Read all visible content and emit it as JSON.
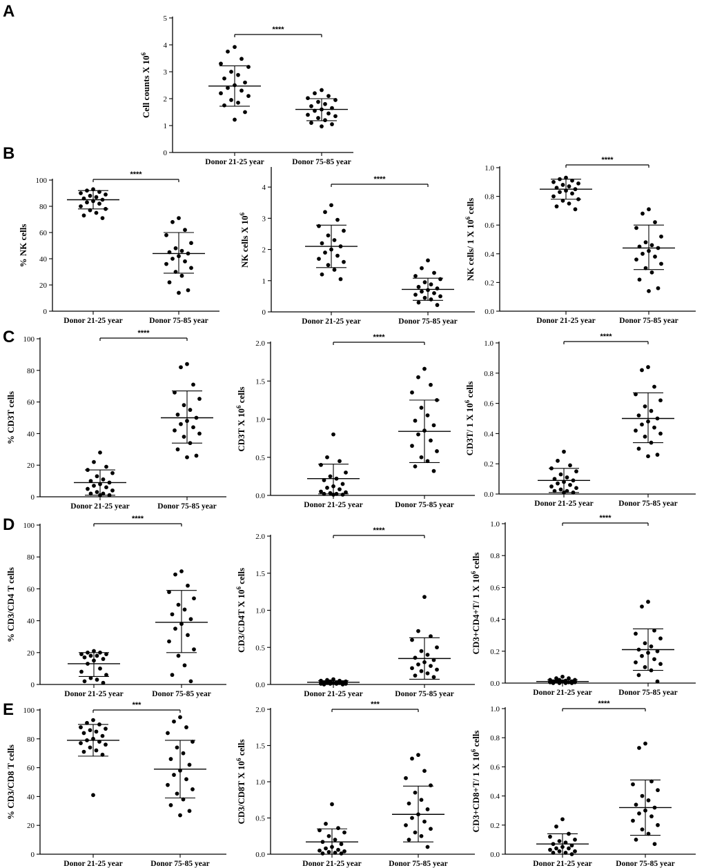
{
  "figure": {
    "panel_labels": [
      "A",
      "B",
      "C",
      "D",
      "E"
    ]
  },
  "chart_data": [
    {
      "id": "A1",
      "type": "scatter",
      "ylabel": "Cell counts X 10",
      "ylabel_sup": "6",
      "ylabel_tail": "",
      "ylim": [
        0,
        5
      ],
      "yticks": [
        0,
        1,
        2,
        3,
        4,
        5
      ],
      "yticklabels": [
        "0",
        "1",
        "2",
        "3",
        "4",
        "5"
      ],
      "categories": [
        "Donor 21-25 year",
        "Donor 75-85 year"
      ],
      "significance": "****",
      "series": [
        {
          "name": "Donor 21-25 year",
          "mean": 2.47,
          "sd_low": 1.72,
          "sd_high": 3.22,
          "values": [
            3.92,
            3.75,
            3.48,
            3.3,
            3.18,
            3.0,
            2.88,
            2.75,
            2.6,
            2.5,
            2.4,
            2.3,
            2.2,
            2.1,
            1.95,
            1.85,
            1.75,
            1.5,
            1.22
          ]
        },
        {
          "name": "Donor 75-85 year",
          "mean": 1.6,
          "sd_low": 1.18,
          "sd_high": 2.0,
          "values": [
            2.32,
            2.2,
            2.1,
            2.02,
            1.95,
            1.88,
            1.8,
            1.72,
            1.65,
            1.6,
            1.55,
            1.45,
            1.4,
            1.35,
            1.28,
            1.2,
            1.1,
            1.05,
            0.97
          ]
        }
      ]
    },
    {
      "id": "B1",
      "type": "scatter",
      "ylabel": "% NK cells",
      "ylabel_sup": "",
      "ylabel_tail": "",
      "ylim": [
        0,
        100
      ],
      "yticks": [
        0,
        20,
        40,
        60,
        80,
        100
      ],
      "yticklabels": [
        "0",
        "20",
        "40",
        "60",
        "80",
        "100"
      ],
      "categories": [
        "Donor 21-25 year",
        "Donor 75-85 year"
      ],
      "significance": "****",
      "series": [
        {
          "name": "Donor 21-25 year",
          "mean": 85,
          "sd_low": 78,
          "sd_high": 92,
          "values": [
            93,
            92,
            91,
            90,
            89,
            88,
            87,
            86,
            85,
            84,
            83,
            82,
            80,
            78,
            77,
            75,
            73,
            71
          ]
        },
        {
          "name": "Donor 75-85 year",
          "mean": 44,
          "sd_low": 29,
          "sd_high": 60,
          "values": [
            71,
            68,
            62,
            58,
            52,
            48,
            46,
            45,
            44,
            42,
            40,
            38,
            36,
            33,
            30,
            27,
            22,
            16,
            14
          ]
        }
      ]
    },
    {
      "id": "B2",
      "type": "scatter",
      "ylabel": "NK cells X 10",
      "ylabel_sup": "6",
      "ylabel_tail": "",
      "ylim": [
        0,
        4.6
      ],
      "yticks": [
        0,
        1,
        2,
        3,
        4
      ],
      "yticklabels": [
        "0",
        "1",
        "2",
        "3",
        "4"
      ],
      "categories": [
        "Donor 21-25 year",
        "Donor 75-85 year"
      ],
      "significance": "****",
      "series": [
        {
          "name": "Donor 21-25 year",
          "mean": 2.1,
          "sd_low": 1.42,
          "sd_high": 2.78,
          "values": [
            3.42,
            3.2,
            2.95,
            2.75,
            2.6,
            2.45,
            2.3,
            2.2,
            2.1,
            2.0,
            1.9,
            1.8,
            1.7,
            1.6,
            1.5,
            1.35,
            1.2,
            1.05
          ]
        },
        {
          "name": "Donor 75-85 year",
          "mean": 0.72,
          "sd_low": 0.37,
          "sd_high": 1.08,
          "values": [
            1.65,
            1.4,
            1.25,
            1.15,
            1.05,
            0.95,
            0.88,
            0.8,
            0.75,
            0.7,
            0.65,
            0.6,
            0.55,
            0.5,
            0.45,
            0.4,
            0.3,
            0.22
          ]
        }
      ]
    },
    {
      "id": "B3",
      "type": "scatter",
      "ylabel": "NK cells/ 1 X 10",
      "ylabel_sup": "6",
      "ylabel_tail": " cells",
      "ylim": [
        0,
        1.0
      ],
      "yticks": [
        0,
        0.2,
        0.4,
        0.6,
        0.8,
        1.0
      ],
      "yticklabels": [
        "0.0",
        "0.2",
        "0.4",
        "0.6",
        "0.8",
        "1.0"
      ],
      "categories": [
        "Donor 21-25 year",
        "Donor 75-85 year"
      ],
      "significance": "****",
      "series": [
        {
          "name": "Donor 21-25 year",
          "mean": 0.85,
          "sd_low": 0.78,
          "sd_high": 0.92,
          "values": [
            0.93,
            0.92,
            0.91,
            0.9,
            0.89,
            0.88,
            0.87,
            0.86,
            0.85,
            0.84,
            0.83,
            0.82,
            0.8,
            0.78,
            0.77,
            0.75,
            0.73,
            0.71
          ]
        },
        {
          "name": "Donor 75-85 year",
          "mean": 0.44,
          "sd_low": 0.29,
          "sd_high": 0.6,
          "values": [
            0.71,
            0.68,
            0.62,
            0.58,
            0.52,
            0.48,
            0.46,
            0.45,
            0.44,
            0.42,
            0.4,
            0.38,
            0.36,
            0.33,
            0.3,
            0.27,
            0.22,
            0.16,
            0.14
          ]
        }
      ]
    },
    {
      "id": "C1",
      "type": "scatter",
      "ylabel": "% CD3T cells",
      "ylabel_sup": "",
      "ylabel_tail": "",
      "ylim": [
        0,
        100
      ],
      "yticks": [
        0,
        20,
        40,
        60,
        80,
        100
      ],
      "yticklabels": [
        "0",
        "20",
        "40",
        "60",
        "80",
        "100"
      ],
      "categories": [
        "Donor 21-25 year",
        "Donor 75-85 year"
      ],
      "significance": "****",
      "series": [
        {
          "name": "Donor 21-25 year",
          "mean": 9,
          "sd_low": 1,
          "sd_high": 17,
          "values": [
            28,
            22,
            19,
            17,
            15,
            13,
            11,
            10,
            9,
            8,
            7,
            6,
            5,
            4,
            3,
            2,
            2,
            1,
            1
          ]
        },
        {
          "name": "Donor 75-85 year",
          "mean": 50,
          "sd_low": 34,
          "sd_high": 67,
          "values": [
            84,
            82,
            71,
            66,
            62,
            58,
            55,
            52,
            50,
            48,
            46,
            44,
            42,
            40,
            38,
            34,
            30,
            26,
            25
          ]
        }
      ]
    },
    {
      "id": "C2",
      "type": "scatter",
      "ylabel": "CD3T X 10",
      "ylabel_sup": "6",
      "ylabel_tail": " cells",
      "ylim": [
        0,
        2.0
      ],
      "yticks": [
        0,
        0.5,
        1.0,
        1.5,
        2.0
      ],
      "yticklabels": [
        "0.0",
        "0.5",
        "1.0",
        "1.5",
        "2.0"
      ],
      "categories": [
        "Donor 21-25 year",
        "Donor 75-85 year"
      ],
      "significance": "****",
      "series": [
        {
          "name": "Donor 21-25 year",
          "mean": 0.22,
          "sd_low": 0.02,
          "sd_high": 0.41,
          "values": [
            0.8,
            0.5,
            0.45,
            0.4,
            0.3,
            0.25,
            0.22,
            0.2,
            0.15,
            0.12,
            0.1,
            0.08,
            0.05,
            0.04,
            0.03,
            0.02,
            0.02,
            0.01,
            0.01
          ]
        },
        {
          "name": "Donor 75-85 year",
          "mean": 0.84,
          "sd_low": 0.43,
          "sd_high": 1.25,
          "values": [
            1.66,
            1.55,
            1.45,
            1.35,
            1.25,
            1.15,
            1.05,
            0.98,
            0.92,
            0.85,
            0.8,
            0.72,
            0.65,
            0.58,
            0.5,
            0.45,
            0.38,
            0.32
          ]
        }
      ]
    },
    {
      "id": "C3",
      "type": "scatter",
      "ylabel": "CD3T/ 1 X 10",
      "ylabel_sup": "6",
      "ylabel_tail": " cells",
      "ylim": [
        0,
        1.0
      ],
      "yticks": [
        0,
        0.2,
        0.4,
        0.6,
        0.8,
        1.0
      ],
      "yticklabels": [
        "0.0",
        "0.2",
        "0.4",
        "0.6",
        "0.8",
        "1.0"
      ],
      "categories": [
        "Donor 21-25 year",
        "Donor 75-85 year"
      ],
      "significance": "****",
      "series": [
        {
          "name": "Donor 21-25 year",
          "mean": 0.09,
          "sd_low": 0.01,
          "sd_high": 0.17,
          "values": [
            0.28,
            0.22,
            0.19,
            0.17,
            0.15,
            0.13,
            0.11,
            0.1,
            0.09,
            0.08,
            0.07,
            0.06,
            0.05,
            0.04,
            0.03,
            0.02,
            0.02,
            0.01,
            0.01
          ]
        },
        {
          "name": "Donor 75-85 year",
          "mean": 0.5,
          "sd_low": 0.34,
          "sd_high": 0.67,
          "values": [
            0.84,
            0.82,
            0.71,
            0.66,
            0.62,
            0.58,
            0.55,
            0.52,
            0.5,
            0.48,
            0.46,
            0.44,
            0.42,
            0.4,
            0.38,
            0.34,
            0.3,
            0.26,
            0.25
          ]
        }
      ]
    },
    {
      "id": "D1",
      "type": "scatter",
      "ylabel": "% CD3/CD4 T cells",
      "ylabel_sup": "",
      "ylabel_tail": "",
      "ylim": [
        0,
        100
      ],
      "yticks": [
        0,
        20,
        40,
        60,
        80,
        100
      ],
      "yticklabels": [
        "0",
        "20",
        "40",
        "60",
        "80",
        "100"
      ],
      "categories": [
        "Donor 21-25 year",
        "Donor 75-85 year"
      ],
      "significance": "****",
      "series": [
        {
          "name": "Donor 21-25 year",
          "mean": 13,
          "sd_low": 5,
          "sd_high": 20,
          "values": [
            21,
            20,
            20,
            19,
            19,
            18,
            18,
            17,
            16,
            15,
            13,
            10,
            8,
            6,
            4,
            3,
            2,
            1
          ]
        },
        {
          "name": "Donor 75-85 year",
          "mean": 39,
          "sd_low": 20,
          "sd_high": 59,
          "values": [
            71,
            69,
            62,
            58,
            54,
            50,
            47,
            44,
            41,
            38,
            35,
            31,
            27,
            22,
            18,
            12,
            6,
            2
          ]
        }
      ]
    },
    {
      "id": "D2",
      "type": "scatter",
      "ylabel": "CD3/CD4T X 10",
      "ylabel_sup": "6",
      "ylabel_tail": " cells",
      "ylim": [
        0,
        2.0
      ],
      "yticks": [
        0,
        0.5,
        1.0,
        1.5,
        2.0
      ],
      "yticklabels": [
        "0.0",
        "0.5",
        "1.0",
        "1.5",
        "2.0"
      ],
      "categories": [
        "Donor 21-25 year",
        "Donor 75-85 year"
      ],
      "significance": "****",
      "series": [
        {
          "name": "Donor 21-25 year",
          "mean": 0.03,
          "sd_low": 0.0,
          "sd_high": 0.05,
          "values": [
            0.07,
            0.06,
            0.05,
            0.05,
            0.04,
            0.04,
            0.03,
            0.03,
            0.03,
            0.02,
            0.02,
            0.02,
            0.01,
            0.01,
            0.01,
            0.01,
            0.0,
            0.0
          ]
        },
        {
          "name": "Donor 75-85 year",
          "mean": 0.35,
          "sd_low": 0.07,
          "sd_high": 0.63,
          "values": [
            1.18,
            0.72,
            0.65,
            0.6,
            0.5,
            0.45,
            0.4,
            0.36,
            0.33,
            0.3,
            0.27,
            0.25,
            0.22,
            0.2,
            0.18,
            0.15,
            0.12,
            0.1
          ]
        }
      ]
    },
    {
      "id": "D3",
      "type": "scatter",
      "ylabel": "CD3+CD4+T/ 1 X 10",
      "ylabel_sup": "6",
      "ylabel_tail": " cells",
      "ylim": [
        0,
        1.0
      ],
      "yticks": [
        0,
        0.2,
        0.4,
        0.6,
        0.8,
        1.0
      ],
      "yticklabels": [
        "0.0",
        "0.2",
        "0.4",
        "0.6",
        "0.8",
        "1.0"
      ],
      "categories": [
        "Donor 21-25 year",
        "Donor 75-85 year"
      ],
      "significance": "****",
      "series": [
        {
          "name": "Donor 21-25 year",
          "mean": 0.01,
          "sd_low": 0.0,
          "sd_high": 0.02,
          "values": [
            0.04,
            0.03,
            0.03,
            0.02,
            0.02,
            0.02,
            0.015,
            0.01,
            0.01,
            0.01,
            0.01,
            0.005,
            0.005,
            0.005,
            0.0,
            0.0,
            0.0,
            0.0
          ]
        },
        {
          "name": "Donor 75-85 year",
          "mean": 0.21,
          "sd_low": 0.08,
          "sd_high": 0.34,
          "values": [
            0.51,
            0.48,
            0.33,
            0.31,
            0.28,
            0.25,
            0.23,
            0.21,
            0.2,
            0.19,
            0.17,
            0.15,
            0.13,
            0.12,
            0.1,
            0.08,
            0.05,
            0.01
          ]
        }
      ]
    },
    {
      "id": "E1",
      "type": "scatter",
      "ylabel": "% CD3/CD8 T cells",
      "ylabel_sup": "",
      "ylabel_tail": "",
      "ylim": [
        0,
        100
      ],
      "yticks": [
        0,
        20,
        40,
        60,
        80,
        100
      ],
      "yticklabels": [
        "0",
        "20",
        "40",
        "60",
        "80",
        "100"
      ],
      "categories": [
        "Donor 21-25 year",
        "Donor 75-85 year"
      ],
      "significance": "***",
      "series": [
        {
          "name": "Donor 21-25 year",
          "mean": 79,
          "sd_low": 68,
          "sd_high": 90,
          "values": [
            93,
            91,
            90,
            88,
            87,
            86,
            85,
            84,
            82,
            80,
            79,
            78,
            77,
            76,
            74,
            72,
            71,
            69,
            41
          ]
        },
        {
          "name": "Donor 75-85 year",
          "mean": 59,
          "sd_low": 39,
          "sd_high": 79,
          "values": [
            95,
            92,
            88,
            84,
            78,
            74,
            70,
            66,
            62,
            58,
            55,
            52,
            48,
            45,
            42,
            38,
            34,
            30,
            27
          ]
        }
      ]
    },
    {
      "id": "E2",
      "type": "scatter",
      "ylabel": "CD3/CD8T X 10",
      "ylabel_sup": "6",
      "ylabel_tail": " cells",
      "ylim": [
        0,
        2.0
      ],
      "yticks": [
        0,
        0.5,
        1.0,
        1.5,
        2.0
      ],
      "yticklabels": [
        "0.0",
        "0.5",
        "1.0",
        "1.5",
        "2.0"
      ],
      "categories": [
        "Donor 21-25 year",
        "Donor 75-85 year"
      ],
      "significance": "***",
      "series": [
        {
          "name": "Donor 21-25 year",
          "mean": 0.17,
          "sd_low": 0.0,
          "sd_high": 0.35,
          "values": [
            0.69,
            0.42,
            0.36,
            0.33,
            0.3,
            0.25,
            0.2,
            0.17,
            0.14,
            0.1,
            0.08,
            0.06,
            0.05,
            0.04,
            0.03,
            0.02,
            0.01,
            0.01
          ]
        },
        {
          "name": "Donor 75-85 year",
          "mean": 0.55,
          "sd_low": 0.17,
          "sd_high": 0.94,
          "values": [
            1.37,
            1.32,
            1.15,
            1.05,
            0.95,
            0.85,
            0.75,
            0.7,
            0.62,
            0.55,
            0.5,
            0.45,
            0.4,
            0.35,
            0.3,
            0.25,
            0.2,
            0.1
          ]
        }
      ]
    },
    {
      "id": "E3",
      "type": "scatter",
      "ylabel": "CD3+CD8+T/ 1 X 10",
      "ylabel_sup": "6",
      "ylabel_tail": " cells",
      "ylim": [
        0,
        1.0
      ],
      "yticks": [
        0,
        0.2,
        0.4,
        0.6,
        0.8,
        1.0
      ],
      "yticklabels": [
        "0.0",
        "0.2",
        "0.4",
        "0.6",
        "0.8",
        "1.0"
      ],
      "categories": [
        "Donor 21-25 year",
        "Donor 75-85 year"
      ],
      "significance": "****",
      "series": [
        {
          "name": "Donor 21-25 year",
          "mean": 0.07,
          "sd_low": 0.0,
          "sd_high": 0.14,
          "values": [
            0.24,
            0.19,
            0.14,
            0.12,
            0.1,
            0.09,
            0.08,
            0.07,
            0.06,
            0.05,
            0.04,
            0.04,
            0.03,
            0.02,
            0.02,
            0.01,
            0.01,
            0.0
          ]
        },
        {
          "name": "Donor 75-85 year",
          "mean": 0.32,
          "sd_low": 0.13,
          "sd_high": 0.51,
          "values": [
            0.76,
            0.73,
            0.5,
            0.48,
            0.44,
            0.4,
            0.37,
            0.34,
            0.32,
            0.3,
            0.28,
            0.26,
            0.23,
            0.2,
            0.17,
            0.14,
            0.1,
            0.07
          ]
        }
      ]
    }
  ]
}
